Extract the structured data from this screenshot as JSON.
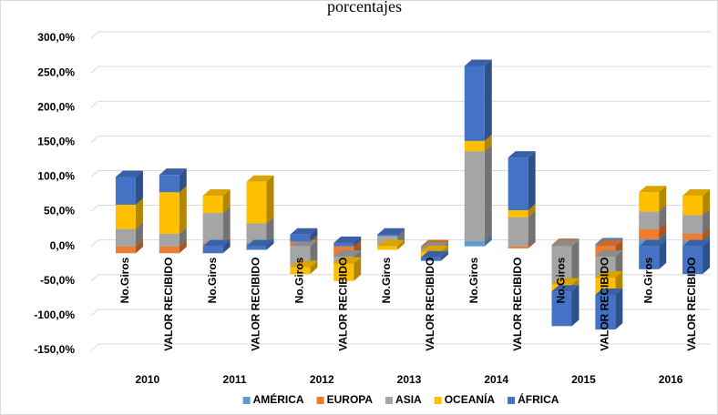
{
  "chart_data": {
    "type": "bar3d-stacked",
    "title": "porcentajes",
    "groups": [
      "2010",
      "2011",
      "2012",
      "2013",
      "2014",
      "2015",
      "2016"
    ],
    "categories": [
      "No.Giros",
      "VALOR RECIBIDO",
      "No.Giros",
      "VALOR RECIBIDO",
      "No.Giros",
      "VALOR RECIBIDO",
      "No.Giros",
      "VALOR RECIBIDO",
      "No.Giros",
      "VALOR RECIBIDO",
      "No.Giros",
      "VALOR RECIBIDO",
      "No.Giros",
      "VALOR RECIBIDO"
    ],
    "series": [
      {
        "name": "AMÉRICA",
        "color": "#5b9bd5",
        "values": [
          0,
          0,
          0,
          5,
          0,
          0,
          0,
          0,
          7,
          0,
          0,
          3,
          10,
          8
        ]
      },
      {
        "name": "EUROPA",
        "color": "#ed7d31",
        "values": [
          -10,
          -10,
          5,
          0,
          7,
          -15,
          0,
          -3,
          0,
          -3,
          2,
          -15,
          15,
          10
        ]
      },
      {
        "name": "ASIA",
        "color": "#a5a5a5",
        "values": [
          25,
          18,
          43,
          28,
          -30,
          -10,
          15,
          -5,
          130,
          42,
          -55,
          -30,
          25,
          27
        ]
      },
      {
        "name": "OCEANÍA",
        "color": "#ffc000",
        "values": [
          35,
          60,
          25,
          60,
          -10,
          -25,
          -5,
          -8,
          15,
          10,
          -10,
          -25,
          28,
          28
        ]
      },
      {
        "name": "ÁFRICA",
        "color": "#4472c4",
        "values": [
          40,
          25,
          -10,
          -5,
          10,
          5,
          2,
          -5,
          108,
          76,
          -50,
          -50,
          -33,
          -40
        ]
      }
    ],
    "ylim": [
      -150,
      300
    ],
    "yticks": [
      {
        "value": -150,
        "label": "-150,0%"
      },
      {
        "value": -100,
        "label": "-100,0%"
      },
      {
        "value": -50,
        "label": "-50,0%"
      },
      {
        "value": 0,
        "label": "0,0%"
      },
      {
        "value": 50,
        "label": "50,0%"
      },
      {
        "value": 100,
        "label": "100,0%"
      },
      {
        "value": 150,
        "label": "150,0%"
      },
      {
        "value": 200,
        "label": "200,0%"
      },
      {
        "value": 250,
        "label": "250,0%"
      },
      {
        "value": 300,
        "label": "300,0%"
      }
    ],
    "grid": true,
    "legend": "bottom"
  }
}
